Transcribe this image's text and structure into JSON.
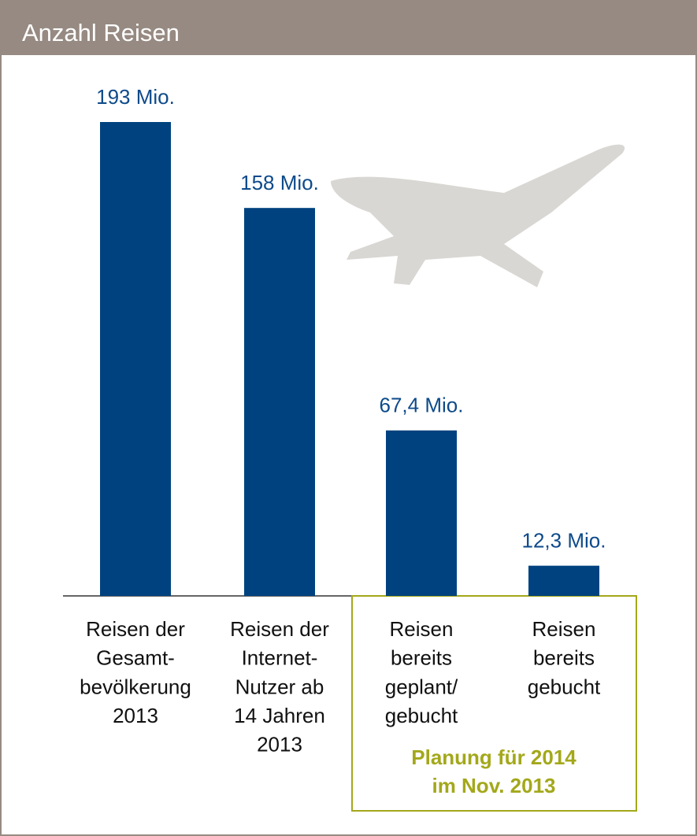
{
  "chart_data": {
    "type": "bar",
    "title": "Anzahl Reisen",
    "categories": [
      [
        "Reisen der",
        "Gesamt-",
        "bevölkerung",
        "2013"
      ],
      [
        "Reisen der",
        "Internet-",
        "Nutzer ab",
        "14 Jahren",
        "2013"
      ],
      [
        "Reisen",
        "bereits",
        "geplant/",
        "gebucht"
      ],
      [
        "Reisen",
        "bereits",
        "gebucht"
      ]
    ],
    "values": [
      193,
      158,
      67.4,
      12.3
    ],
    "value_labels": [
      "193 Mio.",
      "158 Mio.",
      "67,4 Mio.",
      "12,3 Mio."
    ],
    "color": "#00427f",
    "annotation": [
      "Planung für 2014",
      "im Nov. 2013"
    ]
  }
}
